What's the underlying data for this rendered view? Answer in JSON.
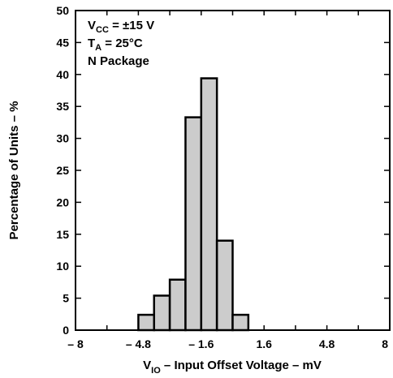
{
  "chart_data": {
    "type": "bar",
    "subtype": "histogram",
    "xlabel_prefix": "V",
    "xlabel_sub": "IO",
    "xlabel_rest": " – Input Offset Voltage – mV",
    "ylabel": "Percentage of Units – %",
    "xlim": [
      -8,
      8
    ],
    "ylim": [
      0,
      50
    ],
    "x_ticks": [
      -8,
      -4.8,
      -1.6,
      1.6,
      4.8,
      8
    ],
    "x_tick_labels": [
      "– 8",
      "– 4.8",
      "– 1.6",
      "1.6",
      "4.8",
      "8"
    ],
    "y_ticks": [
      0,
      5,
      10,
      15,
      20,
      25,
      30,
      35,
      40,
      45,
      50
    ],
    "y_tick_labels": [
      "0",
      "5",
      "10",
      "15",
      "20",
      "25",
      "30",
      "35",
      "40",
      "45",
      "50"
    ],
    "bins": [
      {
        "x0": -4.8,
        "x1": -4.0,
        "value": 2.4
      },
      {
        "x0": -4.0,
        "x1": -3.2,
        "value": 5.4
      },
      {
        "x0": -3.2,
        "x1": -2.4,
        "value": 7.9
      },
      {
        "x0": -2.4,
        "x1": -1.6,
        "value": 33.3
      },
      {
        "x0": -1.6,
        "x1": -0.8,
        "value": 39.4
      },
      {
        "x0": -0.8,
        "x1": 0.0,
        "value": 14.0
      },
      {
        "x0": 0.0,
        "x1": 0.8,
        "value": 2.4
      }
    ],
    "bar_fill": "#cccccc",
    "conditions": {
      "vcc_prefix": "V",
      "vcc_sub": "CC",
      "vcc_value": " = ±15 V",
      "ta_prefix": "T",
      "ta_sub": "A",
      "ta_value": " = 25°C",
      "package": "N Package"
    }
  }
}
